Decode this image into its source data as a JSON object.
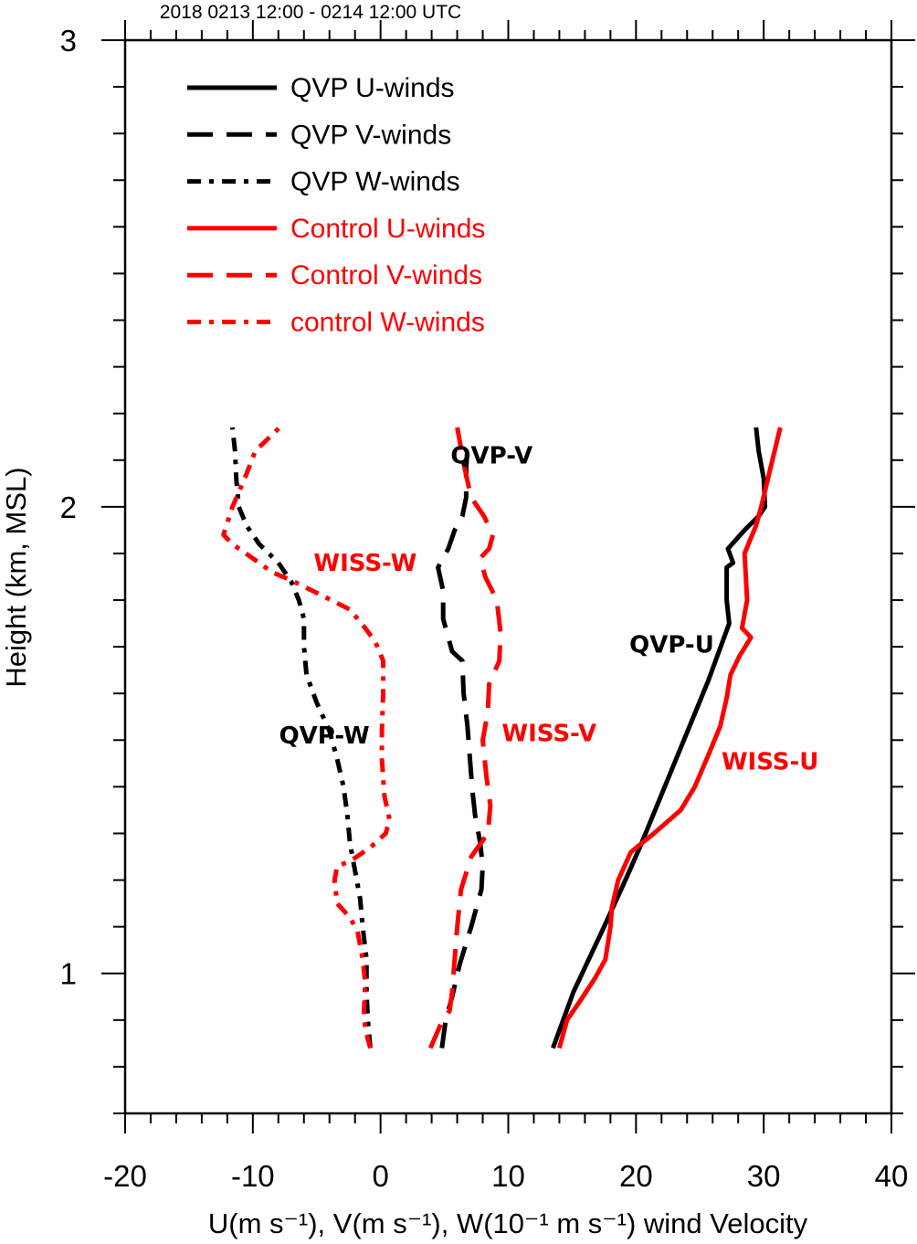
{
  "chart_data": {
    "type": "line",
    "title": "2018 0213 12:00 - 0214 12:00 UTC",
    "xlabel": "U(m s⁻¹), V(m s⁻¹), W(10⁻¹ m s⁻¹) wind Velocity",
    "ylabel": "Height (km, MSL)",
    "xlim": [
      -20,
      40
    ],
    "ylim": [
      0.7,
      3.0
    ],
    "xticks": [
      "-20",
      "-10",
      "0",
      "10",
      "20",
      "30",
      "40"
    ],
    "yticks": [
      "1",
      "2",
      "3"
    ],
    "grid": false,
    "legend_position": "top-left",
    "series": [
      {
        "name": "QVP U-winds",
        "color": "#000000",
        "dash": "solid",
        "points": [
          [
            13.5,
            0.84
          ],
          [
            14.3,
            0.9
          ],
          [
            15.1,
            0.96
          ],
          [
            16.3,
            1.03
          ],
          [
            17.5,
            1.1
          ],
          [
            19,
            1.19
          ],
          [
            19.5,
            1.22
          ],
          [
            20.3,
            1.27
          ],
          [
            21.2,
            1.33
          ],
          [
            22.1,
            1.39
          ],
          [
            23,
            1.45
          ],
          [
            23.9,
            1.51
          ],
          [
            24.8,
            1.57
          ],
          [
            25.7,
            1.63
          ],
          [
            26.5,
            1.69
          ],
          [
            27.3,
            1.75
          ],
          [
            27.1,
            1.8
          ],
          [
            27.1,
            1.87
          ],
          [
            27.6,
            1.88
          ],
          [
            27.2,
            1.91
          ],
          [
            28.5,
            1.95
          ],
          [
            29.6,
            1.98
          ],
          [
            30.1,
            2.0
          ],
          [
            30,
            2.06
          ],
          [
            29.6,
            2.12
          ],
          [
            29.4,
            2.17
          ]
        ]
      },
      {
        "name": "QVP V-winds",
        "color": "#000000",
        "dash": "dashed",
        "points": [
          [
            4.8,
            0.84
          ],
          [
            5.1,
            0.9
          ],
          [
            5.6,
            0.95
          ],
          [
            6.2,
            1.02
          ],
          [
            7.1,
            1.1
          ],
          [
            7.9,
            1.18
          ],
          [
            8.0,
            1.23
          ],
          [
            7.8,
            1.28
          ],
          [
            7.4,
            1.34
          ],
          [
            7.2,
            1.39
          ],
          [
            7.0,
            1.46
          ],
          [
            6.8,
            1.53
          ],
          [
            6.5,
            1.6
          ],
          [
            6.4,
            1.67
          ],
          [
            5.6,
            1.69
          ],
          [
            5.3,
            1.72
          ],
          [
            4.9,
            1.76
          ],
          [
            4.9,
            1.82
          ],
          [
            4.5,
            1.87
          ],
          [
            5.3,
            1.91
          ],
          [
            5.8,
            1.95
          ],
          [
            6.4,
            1.98
          ],
          [
            6.7,
            2.02
          ],
          [
            6.7,
            2.08
          ],
          [
            6.8,
            2.13
          ]
        ]
      },
      {
        "name": "QVP W-winds",
        "color": "#000000",
        "dash": "dashdot",
        "points": [
          [
            -0.8,
            0.84
          ],
          [
            -1.0,
            0.9
          ],
          [
            -1.1,
            0.96
          ],
          [
            -1.1,
            1.03
          ],
          [
            -1.4,
            1.1
          ],
          [
            -1.6,
            1.16
          ],
          [
            -2.0,
            1.22
          ],
          [
            -2.4,
            1.28
          ],
          [
            -2.6,
            1.34
          ],
          [
            -2.9,
            1.4
          ],
          [
            -3.4,
            1.46
          ],
          [
            -4.0,
            1.52
          ],
          [
            -5.0,
            1.58
          ],
          [
            -5.8,
            1.64
          ],
          [
            -6.0,
            1.7
          ],
          [
            -6.0,
            1.76
          ],
          [
            -6.4,
            1.8
          ],
          [
            -7.0,
            1.84
          ],
          [
            -8.0,
            1.88
          ],
          [
            -9.5,
            1.92
          ],
          [
            -10.5,
            1.96
          ],
          [
            -11.1,
            2.0
          ],
          [
            -11.3,
            2.06
          ],
          [
            -11.4,
            2.12
          ],
          [
            -11.6,
            2.17
          ]
        ]
      },
      {
        "name": "Control U-winds",
        "color": "#ff0000",
        "dash": "solid",
        "points": [
          [
            14,
            0.84
          ],
          [
            14.6,
            0.9
          ],
          [
            15.6,
            0.94
          ],
          [
            16.8,
            0.99
          ],
          [
            17.6,
            1.03
          ],
          [
            18,
            1.1
          ],
          [
            18.1,
            1.14
          ],
          [
            18.6,
            1.2
          ],
          [
            19.6,
            1.26
          ],
          [
            21.4,
            1.3
          ],
          [
            23.5,
            1.35
          ],
          [
            24.6,
            1.4
          ],
          [
            25.7,
            1.47
          ],
          [
            26.6,
            1.53
          ],
          [
            27.1,
            1.59
          ],
          [
            27.4,
            1.64
          ],
          [
            28.1,
            1.68
          ],
          [
            29,
            1.72
          ],
          [
            28.3,
            1.74
          ],
          [
            28.7,
            1.8
          ],
          [
            28.6,
            1.85
          ],
          [
            28.5,
            1.9
          ],
          [
            29.4,
            1.96
          ],
          [
            29.8,
            2.0
          ],
          [
            30.5,
            2.08
          ],
          [
            31.3,
            2.17
          ]
        ]
      },
      {
        "name": "Control V-winds",
        "color": "#ff0000",
        "dash": "dashed",
        "points": [
          [
            3.9,
            0.84
          ],
          [
            4.7,
            0.89
          ],
          [
            5.4,
            0.92
          ],
          [
            5.6,
            0.96
          ],
          [
            5.8,
            1.03
          ],
          [
            6.0,
            1.1
          ],
          [
            6.3,
            1.18
          ],
          [
            7.1,
            1.25
          ],
          [
            8.4,
            1.3
          ],
          [
            8.6,
            1.36
          ],
          [
            8.3,
            1.42
          ],
          [
            8.0,
            1.5
          ],
          [
            8.4,
            1.56
          ],
          [
            8.5,
            1.62
          ],
          [
            9.3,
            1.67
          ],
          [
            9.4,
            1.73
          ],
          [
            9.1,
            1.8
          ],
          [
            8.2,
            1.85
          ],
          [
            7.8,
            1.89
          ],
          [
            8.5,
            1.91
          ],
          [
            8.8,
            1.94
          ],
          [
            8.1,
            1.98
          ],
          [
            7.1,
            2.02
          ],
          [
            6.6,
            2.08
          ],
          [
            6.0,
            2.17
          ]
        ]
      },
      {
        "name": "control W-winds",
        "color": "#ff0000",
        "dash": "dashdot",
        "points": [
          [
            -0.8,
            0.84
          ],
          [
            -1.2,
            0.88
          ],
          [
            -1.3,
            0.92
          ],
          [
            -1.2,
            0.98
          ],
          [
            -1.4,
            1.03
          ],
          [
            -1.8,
            1.09
          ],
          [
            -2.4,
            1.12
          ],
          [
            -3.4,
            1.15
          ],
          [
            -3.6,
            1.2
          ],
          [
            -3.4,
            1.23
          ],
          [
            -2.4,
            1.24
          ],
          [
            -0.8,
            1.27
          ],
          [
            0.4,
            1.3
          ],
          [
            0.7,
            1.33
          ],
          [
            0.3,
            1.38
          ],
          [
            0.1,
            1.46
          ],
          [
            0.1,
            1.52
          ],
          [
            0.2,
            1.6
          ],
          [
            0.2,
            1.67
          ],
          [
            -0.4,
            1.71
          ],
          [
            -1.2,
            1.74
          ],
          [
            -2.4,
            1.78
          ],
          [
            -4.6,
            1.81
          ],
          [
            -6.8,
            1.84
          ],
          [
            -8.5,
            1.86
          ],
          [
            -9.5,
            1.88
          ],
          [
            -11.6,
            1.92
          ],
          [
            -12.3,
            1.94
          ],
          [
            -11.6,
            2.0
          ],
          [
            -10.5,
            2.07
          ],
          [
            -9.8,
            2.12
          ],
          [
            -7.9,
            2.17
          ]
        ]
      }
    ],
    "annotations": [
      {
        "text": "QVP-V",
        "color": "#000000",
        "x": 8.7,
        "y": 2.11
      },
      {
        "text": "WISS-W",
        "color": "#ff0000",
        "x": -1.2,
        "y": 1.88
      },
      {
        "text": "QVP-U",
        "color": "#000000",
        "x": 22.8,
        "y": 1.705
      },
      {
        "text": "WISS-V",
        "color": "#ff0000",
        "x": 13.2,
        "y": 1.515
      },
      {
        "text": "QVP-W",
        "color": "#000000",
        "x": -4.4,
        "y": 1.51
      },
      {
        "text": "WISS-U",
        "color": "#ff0000",
        "x": 30.5,
        "y": 1.455
      }
    ]
  }
}
